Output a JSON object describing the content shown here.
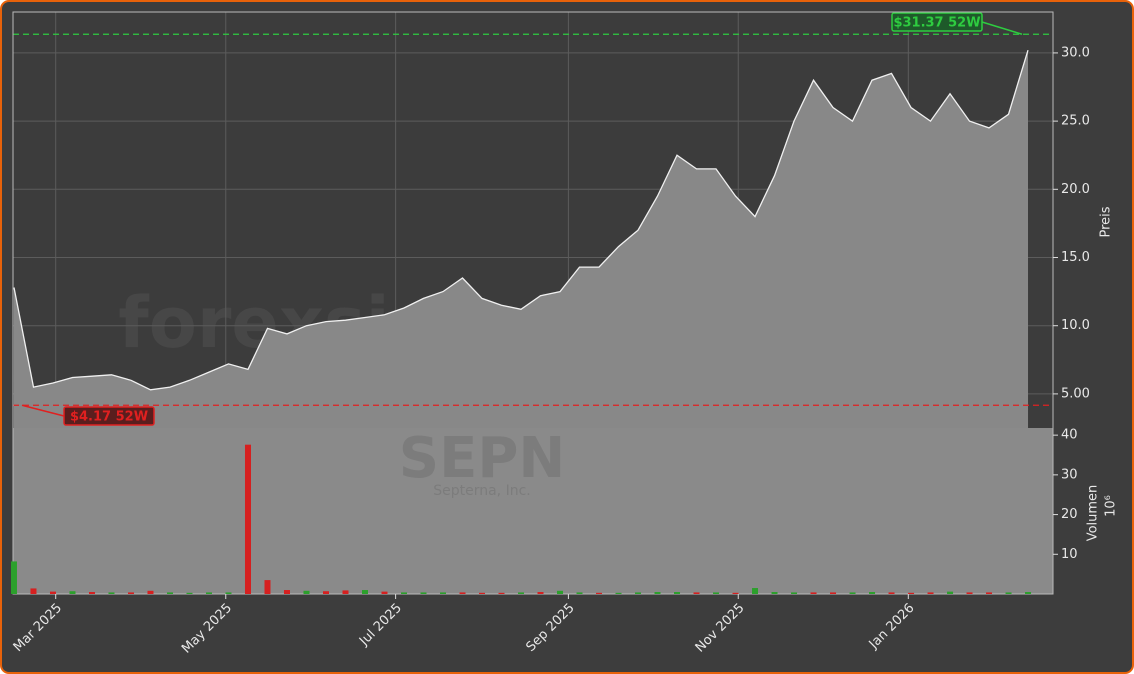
{
  "chart_data": [
    {
      "type": "area",
      "watermark": "forexsignale.trade",
      "ticker": "SEPN",
      "company": "Septerna, Inc.",
      "y_label": "Preis",
      "categories": [
        null,
        null,
        null,
        null,
        null,
        null,
        null,
        null,
        null,
        null,
        null,
        null,
        null,
        null,
        null,
        null,
        null,
        null,
        null,
        null,
        null,
        null,
        null,
        null,
        null,
        null,
        null,
        null,
        null,
        null,
        null,
        null,
        null,
        null,
        null,
        null,
        null,
        null,
        null,
        null,
        null,
        null,
        null,
        null,
        null,
        null,
        null,
        null,
        null,
        null,
        null,
        null,
        null
      ],
      "series": [
        {
          "name": "SEPN",
          "color": "#f0f0f0",
          "values": [
            12.8,
            5.5,
            5.8,
            6.2,
            6.3,
            6.4,
            6.0,
            5.3,
            5.5,
            6.0,
            6.6,
            7.2,
            6.8,
            9.8,
            9.4,
            10.0,
            10.3,
            10.4,
            10.6,
            10.8,
            11.3,
            12.0,
            12.5,
            13.5,
            12.0,
            11.5,
            11.2,
            12.2,
            12.5,
            14.3,
            14.3,
            15.8,
            17.0,
            19.5,
            22.5,
            21.5,
            21.5,
            19.5,
            18.0,
            21.0,
            25.0,
            28.0,
            26.0,
            25.0,
            28.0,
            28.5,
            26.0,
            25.0,
            27.0,
            25.0,
            24.5,
            25.5,
            30.2
          ]
        }
      ],
      "area_color": "#888888",
      "xlim": [
        -0.05,
        53.28
      ],
      "ylim": [
        2.5,
        33
      ],
      "yticks": [
        {
          "value": 5,
          "label": "5.00"
        },
        {
          "value": 10,
          "label": "10.0"
        },
        {
          "value": 15,
          "label": "15.0"
        },
        {
          "value": 20,
          "label": "20.0"
        },
        {
          "value": 25,
          "label": "25.0"
        },
        {
          "value": 30,
          "label": "30.0"
        }
      ],
      "grid": true,
      "annotations": [
        {
          "text": "$31.37 52W",
          "value": 31.37,
          "color": "#2ecc40"
        },
        {
          "text": "$4.17 52W",
          "value": 4.17,
          "color": "#e02020"
        }
      ]
    },
    {
      "type": "bar",
      "y_label": "Volumen",
      "y_unit": "10⁶",
      "categories": [
        null,
        null,
        null,
        null,
        null,
        null,
        null,
        null,
        null,
        null,
        null,
        null,
        null,
        null,
        null,
        null,
        null,
        null,
        null,
        null,
        null,
        null,
        null,
        null,
        null,
        null,
        null,
        null,
        null,
        null,
        null,
        null,
        null,
        null,
        null,
        null,
        null,
        null,
        null,
        null,
        null,
        null,
        null,
        null,
        null,
        null,
        null,
        null,
        null,
        null,
        null,
        null,
        null
      ],
      "series": [
        {
          "name": "Volumen",
          "values": [
            8.2,
            1.4,
            0.6,
            0.7,
            0.5,
            0.4,
            0.4,
            0.8,
            0.4,
            0.3,
            0.4,
            0.4,
            37.6,
            3.5,
            1.0,
            0.8,
            0.7,
            0.9,
            1.0,
            0.6,
            0.4,
            0.4,
            0.4,
            0.4,
            0.3,
            0.3,
            0.4,
            0.5,
            0.8,
            0.4,
            0.3,
            0.3,
            0.4,
            0.5,
            0.5,
            0.4,
            0.4,
            0.3,
            1.5,
            0.5,
            0.4,
            0.4,
            0.4,
            0.4,
            0.5,
            0.4,
            0.3,
            0.4,
            0.6,
            0.4,
            0.4,
            0.4,
            0.5
          ],
          "colors": [
            "#2ca02c",
            "#d62020",
            "#d62020",
            "#2ca02c",
            "#d62020",
            "#2ca02c",
            "#d62020",
            "#d62020",
            "#2ca02c",
            "#2ca02c",
            "#2ca02c",
            "#2ca02c",
            "#d62020",
            "#d62020",
            "#d62020",
            "#2ca02c",
            "#d62020",
            "#d62020",
            "#2ca02c",
            "#d62020",
            "#2ca02c",
            "#2ca02c",
            "#2ca02c",
            "#d62020",
            "#d62020",
            "#d62020",
            "#2ca02c",
            "#d62020",
            "#2ca02c",
            "#2ca02c",
            "#d62020",
            "#2ca02c",
            "#2ca02c",
            "#2ca02c",
            "#2ca02c",
            "#d62020",
            "#2ca02c",
            "#d62020",
            "#2ca02c",
            "#2ca02c",
            "#2ca02c",
            "#d62020",
            "#d62020",
            "#2ca02c",
            "#2ca02c",
            "#d62020",
            "#d62020",
            "#d62020",
            "#2ca02c",
            "#d62020",
            "#d62020",
            "#2ca02c",
            "#2ca02c"
          ]
        }
      ],
      "panel_color": "#8a8a8a",
      "xlim": [
        -0.05,
        53.28
      ],
      "xticks": [
        {
          "value": 2.14,
          "label": "Mar 2025"
        },
        {
          "value": 10.86,
          "label": "May 2025"
        },
        {
          "value": 19.57,
          "label": "Jul 2025"
        },
        {
          "value": 28.43,
          "label": "Sep 2025"
        },
        {
          "value": 37.14,
          "label": "Nov 2025"
        },
        {
          "value": 45.86,
          "label": "Jan 2026"
        }
      ],
      "ylim": [
        0,
        41.8
      ],
      "yticks": [
        10,
        20,
        30,
        40
      ],
      "grid": true
    }
  ]
}
